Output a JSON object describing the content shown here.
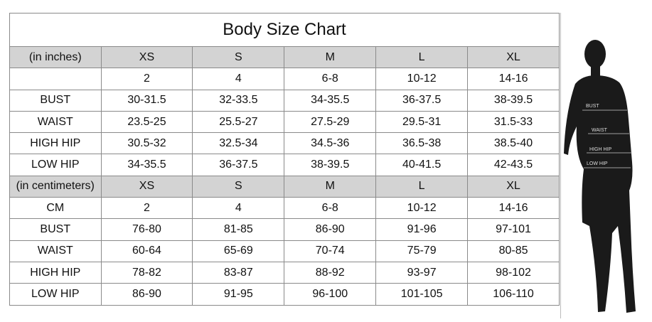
{
  "title": "Body Size Chart",
  "inches": {
    "header": [
      "(in inches)",
      "XS",
      "S",
      "M",
      "L",
      "XL"
    ],
    "rows": [
      [
        "",
        "2",
        "4",
        "6-8",
        "10-12",
        "14-16"
      ],
      [
        "BUST",
        "30-31.5",
        "32-33.5",
        "34-35.5",
        "36-37.5",
        "38-39.5"
      ],
      [
        "WAIST",
        "23.5-25",
        "25.5-27",
        "27.5-29",
        "29.5-31",
        "31.5-33"
      ],
      [
        "HIGH HIP",
        "30.5-32",
        "32.5-34",
        "34.5-36",
        "36.5-38",
        "38.5-40"
      ],
      [
        "LOW HIP",
        "34-35.5",
        "36-37.5",
        "38-39.5",
        "40-41.5",
        "42-43.5"
      ]
    ]
  },
  "cm": {
    "header": [
      "(in centimeters)",
      "XS",
      "S",
      "M",
      "L",
      "XL"
    ],
    "rows": [
      [
        "CM",
        "2",
        "4",
        "6-8",
        "10-12",
        "14-16"
      ],
      [
        "BUST",
        "76-80",
        "81-85",
        "86-90",
        "91-96",
        "97-101"
      ],
      [
        "WAIST",
        "60-64",
        "65-69",
        "70-74",
        "75-79",
        "80-85"
      ],
      [
        "HIGH HIP",
        "78-82",
        "83-87",
        "88-92",
        "93-97",
        "98-102"
      ],
      [
        "LOW HIP",
        "86-90",
        "91-95",
        "96-100",
        "101-105",
        "106-110"
      ]
    ]
  },
  "figure": {
    "labels": [
      "BUST",
      "WAIST",
      "HIGH HIP",
      "LOW HIP"
    ]
  }
}
